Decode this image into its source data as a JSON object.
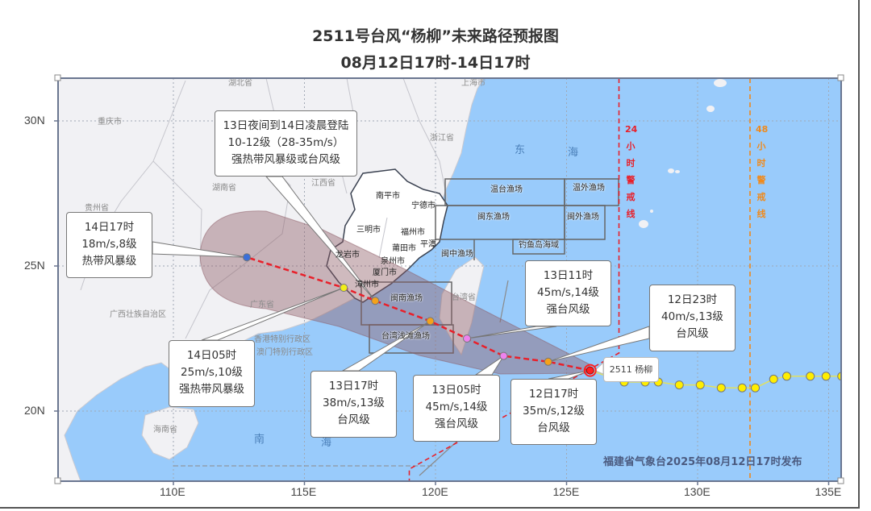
{
  "title": "2511号台风“杨柳”未来路径预报图",
  "subtitle": "08月12日17时-14日17时",
  "typhoon_label": "2511 杨柳",
  "publisher": "福建省气象台2025年08月12日17时发布",
  "axes": {
    "lon_ticks": [
      "110E",
      "115E",
      "120E",
      "125E",
      "130E",
      "135E"
    ],
    "lat_ticks": [
      "30N",
      "25N",
      "20N"
    ]
  },
  "warning_lines": {
    "h24": {
      "label_num": "24",
      "label_chars": [
        "小",
        "时",
        "警",
        "戒",
        "线"
      ],
      "color": "#e8202a"
    },
    "h48": {
      "label_num": "48",
      "label_chars": [
        "小",
        "时",
        "警",
        "戒",
        "线"
      ],
      "color": "#f08a1c"
    }
  },
  "colors": {
    "sea": "#99cbfb",
    "land": "#f1f1f4",
    "cone": "#8c5a64",
    "track": "#e8202a",
    "typhoon": "#f5a21b",
    "severe_typhoon": "#ee82ee",
    "severe_tropical_storm": "#f2ee1a",
    "tropical_storm": "#3b6fd9",
    "current": "#ff2020",
    "past": "#ffee00"
  },
  "forecast_points": [
    {
      "time": "12日17时",
      "lon": 125.9,
      "lat": 21.4,
      "lines": [
        "12日17时",
        "35m/s,12级",
        "台风级"
      ],
      "type": "current"
    },
    {
      "time": "12日23时",
      "lon": 124.3,
      "lat": 21.7,
      "lines": [
        "12日23时",
        "40m/s,13级",
        "台风级"
      ],
      "type": "typhoon"
    },
    {
      "time": "13日05时",
      "lon": 122.6,
      "lat": 21.9,
      "lines": [
        "13日05时",
        "45m/s,14级",
        "强台风级"
      ],
      "type": "severe_typhoon"
    },
    {
      "time": "13日11时",
      "lon": 121.2,
      "lat": 22.5,
      "lines": [
        "13日11时",
        "45m/s,14级",
        "强台风级"
      ],
      "type": "severe_typhoon"
    },
    {
      "time": "13日17时",
      "lon": 119.8,
      "lat": 23.1,
      "lines": [
        "13日17时",
        "38m/s,13级",
        "台风级"
      ],
      "type": "typhoon"
    },
    {
      "time": "13日夜间到14日凌晨登陆",
      "lon": 117.7,
      "lat": 23.8,
      "lines": [
        "13日夜间到14日凌晨登陆",
        "10-12级（28-35m/s）",
        "强热带风暴级或台风级"
      ],
      "type": "typhoon"
    },
    {
      "time": "14日05时",
      "lon": 116.5,
      "lat": 24.25,
      "lines": [
        "14日05时",
        "25m/s,10级",
        "强热带风暴级"
      ],
      "type": "severe_tropical_storm"
    },
    {
      "time": "14日17时",
      "lon": 112.8,
      "lat": 25.3,
      "lines": [
        "14日17时",
        "18m/s,8级",
        "热带风暴级"
      ],
      "type": "tropical_storm"
    }
  ],
  "past_track": [
    [
      127.2,
      21.0
    ],
    [
      128.0,
      21.0
    ],
    [
      128.5,
      21.0
    ],
    [
      129.3,
      20.9
    ],
    [
      130.1,
      20.9
    ],
    [
      130.9,
      20.8
    ],
    [
      131.7,
      20.8
    ],
    [
      132.2,
      20.8
    ],
    [
      132.9,
      21.1
    ],
    [
      133.4,
      21.2
    ],
    [
      134.3,
      21.2
    ],
    [
      134.9,
      21.2
    ],
    [
      135.5,
      21.2
    ]
  ],
  "map_labels": {
    "provinces": [
      "湖北省",
      "上海市",
      "重庆市",
      "浙江省",
      "湖南省",
      "江西省",
      "贵州省",
      "广西壮族自治区",
      "广东省",
      "香港特别行政区",
      "澳门特别行政区",
      "台湾省",
      "海南省"
    ],
    "seas": [
      "东",
      "海",
      "南",
      "海"
    ],
    "cities": [
      "南平市",
      "宁德市",
      "三明市",
      "福州市",
      "莆田市",
      "平潭",
      "龙岩市",
      "泉州市",
      "厦门市",
      "漳州市"
    ],
    "fishing_grounds": [
      "温台渔场",
      "温外渔场",
      "闽东渔场",
      "闽外渔场",
      "钓鱼岛海域",
      "闽中渔场",
      "闽南渔场",
      "台湾浅滩渔场"
    ]
  }
}
